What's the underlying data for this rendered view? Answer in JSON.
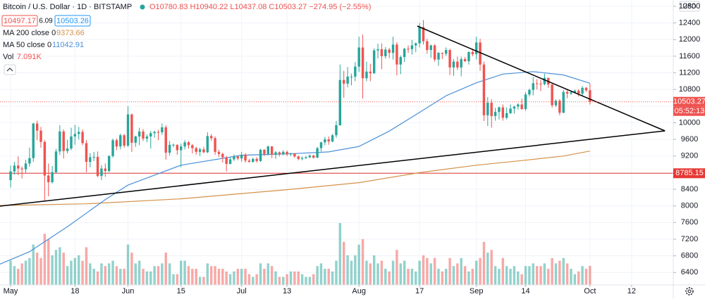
{
  "header": {
    "symbol": "Bitcoin / U.S. Dollar · 1D · BITSTAMP",
    "ohlc": "O10780.83 H10940.22 L10437.08 C10503.27 −274.95 (−2.55%)",
    "bid": "10497.17",
    "spread": "6.09",
    "ask": "10503.26"
  },
  "chart_data": {
    "type": "candlestick",
    "currency": "USD",
    "up_color": "#26a69a",
    "down_color": "#ef5350",
    "xlim": [
      -2.8,
      175
    ],
    "ylim": [
      6100,
      12952
    ],
    "xticks": [
      {
        "value": 0,
        "label": "May"
      },
      {
        "value": 17,
        "label": "18"
      },
      {
        "value": 31,
        "label": "Jun"
      },
      {
        "value": 45,
        "label": "15"
      },
      {
        "value": 61,
        "label": "Jul"
      },
      {
        "value": 73,
        "label": "13"
      },
      {
        "value": 92,
        "label": "Aug"
      },
      {
        "value": 108,
        "label": "17"
      },
      {
        "value": 123,
        "label": "Sep"
      },
      {
        "value": 136,
        "label": "14"
      },
      {
        "value": 153,
        "label": "Oct"
      },
      {
        "value": 164,
        "label": "12"
      }
    ],
    "yticks": [
      6400,
      6800,
      7200,
      7600,
      8000,
      8400,
      8800,
      9200,
      9600,
      10000,
      10400,
      10800,
      11200,
      11600,
      12000,
      12400,
      12800
    ],
    "grid": true,
    "open": [
      8620,
      8830,
      8970,
      8900,
      8880,
      9020,
      9150,
      9980,
      9810,
      9540,
      8730,
      8570,
      8810,
      9310,
      9790,
      9320,
      9380,
      9670,
      9730,
      9780,
      9510,
      9060,
      9170,
      9180,
      8720,
      8900,
      8840,
      9200,
      9580,
      9430,
      9700,
      9450,
      10200,
      9520,
      9670,
      9790,
      9620,
      9670,
      9750,
      9780,
      9770,
      9890,
      9280,
      9470,
      9470,
      9340,
      9430,
      9530,
      9460,
      9390,
      9300,
      9360,
      9290,
      9680,
      9630,
      9300,
      9250,
      9170,
      9010,
      9120,
      9190,
      9140,
      9230,
      9090,
      9060,
      9130,
      9080,
      9350,
      9250,
      9430,
      9230,
      9290,
      9240,
      9300,
      9240,
      9260,
      9190,
      9130,
      9150,
      9170,
      9210,
      9160,
      9390,
      9530,
      9600,
      9550,
      9700,
      9940,
      11030,
      10940,
      11110,
      11110,
      11350,
      11810,
      11070,
      11230,
      11190,
      11740,
      11770,
      11600,
      11760,
      11680,
      11880,
      11400,
      11580,
      11780,
      11770,
      11860,
      11910,
      12300,
      11960,
      11750,
      11860,
      11520,
      11680,
      11660,
      11750,
      11330,
      11470,
      11330,
      11530,
      11480,
      11700,
      11650,
      11930,
      11400,
      10180,
      10480,
      10160,
      10260,
      10370,
      10120,
      10230,
      10340,
      10390,
      10440,
      10330,
      10680,
      10790,
      10950,
      10940,
      10930,
      11080,
      10920,
      10420,
      10530,
      10240,
      10740,
      10700,
      10730,
      10770,
      10700,
      10840,
      10780.83
    ],
    "high": [
      8970,
      9060,
      9190,
      8950,
      9110,
      9400,
      10000,
      10050,
      9900,
      9580,
      9020,
      8960,
      9370,
      9940,
      9840,
      9590,
      9880,
      9950,
      9900,
      9840,
      9580,
      9270,
      9300,
      9310,
      8980,
      9020,
      9220,
      9620,
      9620,
      9740,
      9730,
      10400,
      10220,
      9690,
      9880,
      9850,
      9720,
      9800,
      9810,
      9830,
      9980,
      9940,
      9560,
      9500,
      9480,
      9500,
      9580,
      9560,
      9490,
      9420,
      9400,
      9420,
      9770,
      9730,
      9670,
      9350,
      9280,
      9200,
      9170,
      9240,
      9200,
      9300,
      9270,
      9130,
      9160,
      9170,
      9370,
      9370,
      9450,
      9440,
      9320,
      9310,
      9340,
      9330,
      9280,
      9270,
      9210,
      9190,
      9200,
      9240,
      9230,
      9420,
      9540,
      9660,
      9670,
      9730,
      10040,
      11400,
      11250,
      11340,
      11180,
      11460,
      12070,
      12120,
      11470,
      11420,
      11790,
      11900,
      11910,
      11820,
      11800,
      12070,
      11940,
      11620,
      11800,
      11860,
      11990,
      11930,
      12400,
      12470,
      12020,
      11880,
      11890,
      11700,
      11690,
      11810,
      11780,
      11530,
      11590,
      11590,
      11580,
      11720,
      11780,
      12070,
      12020,
      11470,
      10620,
      10570,
      10360,
      10390,
      10440,
      10370,
      10440,
      10410,
      10470,
      10580,
      10740,
      10820,
      11100,
      11050,
      11030,
      11180,
      11080,
      10930,
      10560,
      10570,
      10790,
      10800,
      10770,
      10800,
      10810,
      10880,
      10860,
      10940.22
    ],
    "low": [
      8440,
      8750,
      8740,
      8660,
      8800,
      8940,
      9060,
      9580,
      9400,
      8130,
      8230,
      8540,
      8790,
      9230,
      9140,
      9260,
      9340,
      9470,
      9600,
      9460,
      8810,
      8930,
      9080,
      8690,
      8620,
      8700,
      8810,
      9160,
      9340,
      9360,
      9400,
      9420,
      9300,
      9420,
      9460,
      9560,
      9530,
      9380,
      9640,
      9580,
      9710,
      9110,
      9210,
      9410,
      9230,
      8930,
      9360,
      9380,
      9260,
      9230,
      9200,
      9270,
      9270,
      9570,
      9230,
      9180,
      9040,
      8830,
      9000,
      9080,
      9100,
      9060,
      9040,
      9040,
      9040,
      9040,
      9060,
      9200,
      9220,
      9150,
      9130,
      9190,
      9220,
      9200,
      9200,
      9160,
      9100,
      9100,
      9130,
      9150,
      9140,
      9150,
      9310,
      9460,
      9470,
      9530,
      9640,
      9930,
      10600,
      10850,
      10900,
      11000,
      11220,
      10580,
      11000,
      11000,
      11170,
      11550,
      11290,
      11540,
      11550,
      11520,
      11140,
      11170,
      11460,
      11680,
      11640,
      11700,
      11810,
      11880,
      11660,
      11560,
      11470,
      11370,
      11530,
      11610,
      11150,
      11130,
      11270,
      11120,
      11460,
      11400,
      11600,
      11520,
      11250,
      10040,
      9920,
      9880,
      10050,
      10080,
      10050,
      10080,
      10210,
      10220,
      10320,
      10310,
      10290,
      10630,
      10660,
      10800,
      10760,
      10900,
      10840,
      10360,
      10380,
      10180,
      10230,
      10590,
      10670,
      10720,
      10630,
      10660,
      10740,
      10437.08
    ],
    "close": [
      8830,
      8970,
      8900,
      8880,
      9020,
      9150,
      9980,
      9810,
      9540,
      8730,
      8570,
      8810,
      9310,
      9790,
      9320,
      9380,
      9670,
      9730,
      9780,
      9510,
      9060,
      9170,
      9180,
      8720,
      8900,
      8840,
      9200,
      9580,
      9430,
      9700,
      9450,
      10200,
      9520,
      9670,
      9790,
      9620,
      9670,
      9750,
      9780,
      9770,
      9890,
      9280,
      9470,
      9470,
      9340,
      9430,
      9530,
      9460,
      9390,
      9300,
      9360,
      9290,
      9680,
      9630,
      9300,
      9250,
      9170,
      9010,
      9120,
      9190,
      9140,
      9230,
      9090,
      9060,
      9130,
      9080,
      9350,
      9250,
      9430,
      9230,
      9290,
      9240,
      9300,
      9240,
      9260,
      9190,
      9130,
      9150,
      9170,
      9210,
      9160,
      9390,
      9530,
      9600,
      9550,
      9700,
      9940,
      11030,
      10940,
      11110,
      11110,
      11350,
      11810,
      11070,
      11230,
      11190,
      11740,
      11770,
      11600,
      11760,
      11680,
      11880,
      11400,
      11580,
      11780,
      11770,
      11860,
      11910,
      12300,
      11960,
      11750,
      11860,
      11520,
      11680,
      11660,
      11750,
      11330,
      11470,
      11330,
      11530,
      11480,
      11700,
      11650,
      11930,
      11400,
      10180,
      10480,
      10160,
      10260,
      10370,
      10120,
      10230,
      10340,
      10390,
      10440,
      10330,
      10680,
      10790,
      10950,
      10940,
      10930,
      11080,
      10920,
      10420,
      10530,
      10240,
      10740,
      10700,
      10730,
      10770,
      10700,
      10840,
      10780,
      10503.27
    ],
    "volume": [
      9,
      7,
      6,
      8,
      9,
      10,
      15,
      12,
      10,
      19,
      17,
      11,
      13,
      14,
      12,
      7,
      9,
      10,
      11,
      9,
      14,
      8,
      6,
      5,
      8,
      7,
      8,
      9,
      7,
      6,
      6,
      15,
      12,
      8,
      9,
      6,
      5,
      5,
      7,
      7,
      8,
      12,
      8,
      4,
      4,
      9,
      9,
      7,
      6,
      6,
      3,
      3,
      8,
      7,
      7,
      6,
      6,
      5,
      4,
      5,
      6,
      6,
      6,
      4,
      3,
      4,
      8,
      6,
      8,
      7,
      5,
      3,
      3,
      4,
      5,
      5,
      5,
      4,
      3,
      3,
      4,
      7,
      8,
      6,
      6,
      5,
      9,
      23,
      16,
      11,
      9,
      11,
      15,
      17,
      9,
      8,
      11,
      8,
      9,
      6,
      5,
      9,
      13,
      8,
      9,
      6,
      6,
      5,
      9,
      11,
      10,
      8,
      10,
      6,
      5,
      6,
      10,
      7,
      8,
      10,
      7,
      5,
      6,
      9,
      10,
      16,
      12,
      13,
      7,
      6,
      10,
      7,
      6,
      7,
      5,
      4,
      7,
      7,
      8,
      7,
      7,
      8,
      6,
      10,
      8,
      9,
      10,
      8,
      6,
      4,
      5,
      7,
      6,
      7.091
    ],
    "volume_label": "Vol",
    "volume_last": "7.091K",
    "ma": [
      {
        "name": "MA 200 close 0",
        "last": "9373.66",
        "color": "#d4914a",
        "x": [
          -2.8,
          20,
          45,
          73,
          92,
          108,
          123,
          136,
          146,
          153
        ],
        "values": [
          8010,
          8050,
          8170,
          8390,
          8560,
          8800,
          8980,
          9100,
          9200,
          9320
        ]
      },
      {
        "name": "MA 50 close 0",
        "last": "11042.91",
        "color": "#4a90d9",
        "x": [
          -2.8,
          5,
          15,
          25,
          31,
          45,
          61,
          73,
          84,
          92,
          100,
          108,
          115,
          123,
          130,
          138,
          146,
          153
        ],
        "values": [
          6600,
          6900,
          7500,
          8150,
          8500,
          8980,
          9220,
          9250,
          9300,
          9430,
          9800,
          10250,
          10650,
          10960,
          11170,
          11230,
          11150,
          10950
        ]
      }
    ],
    "trendlines": [
      {
        "x": [
          107.4,
          172.8
        ],
        "values": [
          12326,
          9805
        ]
      },
      {
        "x": [
          -2.8,
          172.8
        ],
        "values": [
          7995,
          9805
        ]
      }
    ],
    "last_price": 10503.27,
    "countdown": "05:52:13",
    "hline": 8785.15,
    "hline_color": "#e53935"
  }
}
